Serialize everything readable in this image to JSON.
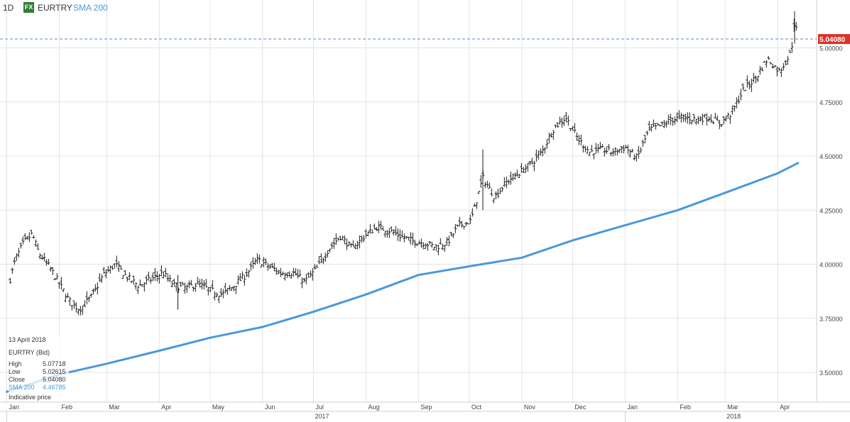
{
  "header": {
    "period": "1D",
    "fx_badge": "FX",
    "symbol": "EURTRY",
    "indicator": "SMA 200"
  },
  "colors": {
    "sma": "#4a98da",
    "bars": "#1a1a1a",
    "last_price_badge": "#d9342b",
    "grid": "#e3e3e3"
  },
  "last_price_label": "5.04080",
  "info_box": {
    "date": "13 April 2018",
    "title": "EURTRY (Bid)",
    "rows": [
      {
        "label": "High",
        "value": "5.07718"
      },
      {
        "label": "Low",
        "value": "5.02615"
      },
      {
        "label": "Close",
        "value": "5.04080"
      },
      {
        "label": "SMA 200",
        "value": "4.46785"
      }
    ],
    "note": "Indicative price"
  },
  "chart_data": {
    "type": "ohlc",
    "y_ticks": [
      "3.50000",
      "3.75000",
      "4.00000",
      "4.25000",
      "4.50000",
      "4.75000",
      "5.00000"
    ],
    "ylim": [
      3.41,
      5.21
    ],
    "x_month_labels": [
      "Jan",
      "Feb",
      "Mar",
      "Apr",
      "May",
      "Jun",
      "Jul",
      "Aug",
      "Sep",
      "Oct",
      "Nov",
      "Dec",
      "Jan",
      "Feb",
      "Mar",
      "Apr"
    ],
    "year_labels": [
      "2017",
      "2018"
    ],
    "last_price": 5.0408,
    "close_series": [
      {
        "date": "2017-01-03",
        "close": 3.93
      },
      {
        "date": "2017-01-06",
        "close": 4.02
      },
      {
        "date": "2017-01-11",
        "close": 4.1
      },
      {
        "date": "2017-01-16",
        "close": 4.14
      },
      {
        "date": "2017-01-20",
        "close": 4.05
      },
      {
        "date": "2017-01-26",
        "close": 3.99
      },
      {
        "date": "2017-02-01",
        "close": 3.91
      },
      {
        "date": "2017-02-07",
        "close": 3.83
      },
      {
        "date": "2017-02-13",
        "close": 3.79
      },
      {
        "date": "2017-02-20",
        "close": 3.85
      },
      {
        "date": "2017-02-27",
        "close": 3.95
      },
      {
        "date": "2017-03-06",
        "close": 4.0
      },
      {
        "date": "2017-03-13",
        "close": 3.94
      },
      {
        "date": "2017-03-20",
        "close": 3.9
      },
      {
        "date": "2017-03-27",
        "close": 3.93
      },
      {
        "date": "2017-04-03",
        "close": 3.96
      },
      {
        "date": "2017-04-10",
        "close": 3.9
      },
      {
        "date": "2017-04-17",
        "close": 3.89
      },
      {
        "date": "2017-04-24",
        "close": 3.91
      },
      {
        "date": "2017-05-01",
        "close": 3.88
      },
      {
        "date": "2017-05-08",
        "close": 3.86
      },
      {
        "date": "2017-05-15",
        "close": 3.9
      },
      {
        "date": "2017-05-22",
        "close": 3.95
      },
      {
        "date": "2017-05-29",
        "close": 4.02
      },
      {
        "date": "2017-06-05",
        "close": 3.99
      },
      {
        "date": "2017-06-12",
        "close": 3.96
      },
      {
        "date": "2017-06-19",
        "close": 3.96
      },
      {
        "date": "2017-06-26",
        "close": 3.92
      },
      {
        "date": "2017-07-03",
        "close": 3.98
      },
      {
        "date": "2017-07-10",
        "close": 4.07
      },
      {
        "date": "2017-07-17",
        "close": 4.13
      },
      {
        "date": "2017-07-24",
        "close": 4.07
      },
      {
        "date": "2017-07-31",
        "close": 4.13
      },
      {
        "date": "2017-08-07",
        "close": 4.17
      },
      {
        "date": "2017-08-14",
        "close": 4.16
      },
      {
        "date": "2017-08-21",
        "close": 4.13
      },
      {
        "date": "2017-08-28",
        "close": 4.11
      },
      {
        "date": "2017-09-04",
        "close": 4.1
      },
      {
        "date": "2017-09-11",
        "close": 4.08
      },
      {
        "date": "2017-09-18",
        "close": 4.1
      },
      {
        "date": "2017-09-25",
        "close": 4.18
      },
      {
        "date": "2017-10-02",
        "close": 4.2
      },
      {
        "date": "2017-10-09",
        "close": 4.4
      },
      {
        "date": "2017-10-16",
        "close": 4.31
      },
      {
        "date": "2017-10-23",
        "close": 4.38
      },
      {
        "date": "2017-10-30",
        "close": 4.42
      },
      {
        "date": "2017-11-06",
        "close": 4.46
      },
      {
        "date": "2017-11-13",
        "close": 4.52
      },
      {
        "date": "2017-11-20",
        "close": 4.63
      },
      {
        "date": "2017-11-27",
        "close": 4.68
      },
      {
        "date": "2017-12-04",
        "close": 4.58
      },
      {
        "date": "2017-12-11",
        "close": 4.52
      },
      {
        "date": "2017-12-18",
        "close": 4.53
      },
      {
        "date": "2017-12-25",
        "close": 4.52
      },
      {
        "date": "2018-01-01",
        "close": 4.54
      },
      {
        "date": "2018-01-08",
        "close": 4.49
      },
      {
        "date": "2018-01-15",
        "close": 4.62
      },
      {
        "date": "2018-01-22",
        "close": 4.64
      },
      {
        "date": "2018-01-29",
        "close": 4.67
      },
      {
        "date": "2018-02-05",
        "close": 4.68
      },
      {
        "date": "2018-02-12",
        "close": 4.67
      },
      {
        "date": "2018-02-19",
        "close": 4.68
      },
      {
        "date": "2018-02-26",
        "close": 4.65
      },
      {
        "date": "2018-03-05",
        "close": 4.7
      },
      {
        "date": "2018-03-12",
        "close": 4.81
      },
      {
        "date": "2018-03-19",
        "close": 4.86
      },
      {
        "date": "2018-03-26",
        "close": 4.95
      },
      {
        "date": "2018-04-02",
        "close": 4.89
      },
      {
        "date": "2018-04-09",
        "close": 4.98
      },
      {
        "date": "2018-04-11",
        "close": 5.13
      },
      {
        "date": "2018-04-13",
        "close": 5.04
      }
    ],
    "sma200": [
      {
        "date": "2017-01-01",
        "value": 3.41
      },
      {
        "date": "2017-02-01",
        "value": 3.49
      },
      {
        "date": "2017-03-01",
        "value": 3.54
      },
      {
        "date": "2017-04-01",
        "value": 3.6
      },
      {
        "date": "2017-05-01",
        "value": 3.66
      },
      {
        "date": "2017-06-01",
        "value": 3.71
      },
      {
        "date": "2017-07-01",
        "value": 3.78
      },
      {
        "date": "2017-08-01",
        "value": 3.86
      },
      {
        "date": "2017-09-01",
        "value": 3.95
      },
      {
        "date": "2017-10-01",
        "value": 3.99
      },
      {
        "date": "2017-11-01",
        "value": 4.03
      },
      {
        "date": "2017-12-01",
        "value": 4.11
      },
      {
        "date": "2018-01-01",
        "value": 4.18
      },
      {
        "date": "2018-02-01",
        "value": 4.25
      },
      {
        "date": "2018-03-01",
        "value": 4.33
      },
      {
        "date": "2018-04-01",
        "value": 4.42
      },
      {
        "date": "2018-04-13",
        "value": 4.46785
      }
    ]
  }
}
